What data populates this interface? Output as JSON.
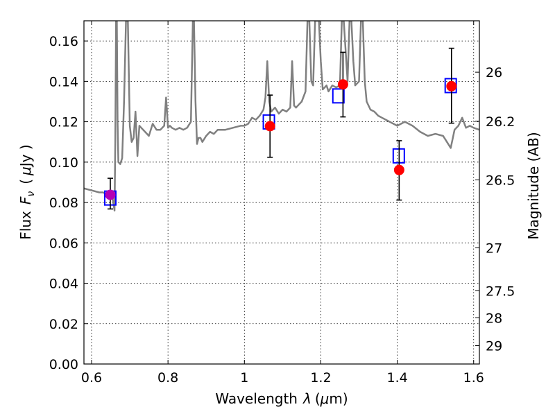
{
  "chart_data": {
    "type": "scatter",
    "xlabel_text": "Wavelength",
    "xlabel_symbol": "λ",
    "xlabel_unit_open": "(",
    "xlabel_unit_mu": "μ",
    "xlabel_unit_rest": "m)",
    "ylabel_text": "Flux",
    "ylabel_symbol": "F",
    "ylabel_sub": "ν",
    "ylabel_unit_open": "(",
    "ylabel_unit_mu": "μ",
    "ylabel_unit_rest": "Jy )",
    "y2label": "Magnitude (AB)",
    "xlim": [
      0.58,
      1.615
    ],
    "ylim": [
      0.0,
      0.17
    ],
    "x_ticks": [
      {
        "value": 0.6,
        "label": "0.6"
      },
      {
        "value": 0.8,
        "label": "0.8"
      },
      {
        "value": 1.0,
        "label": "1"
      },
      {
        "value": 1.2,
        "label": "1.2"
      },
      {
        "value": 1.4,
        "label": "1.4"
      },
      {
        "value": 1.6,
        "label": "1.6"
      }
    ],
    "y_ticks": [
      {
        "value": 0.0,
        "label": "0.00"
      },
      {
        "value": 0.02,
        "label": "0.02"
      },
      {
        "value": 0.04,
        "label": "0.04"
      },
      {
        "value": 0.06,
        "label": "0.06"
      },
      {
        "value": 0.08,
        "label": "0.08"
      },
      {
        "value": 0.1,
        "label": "0.10"
      },
      {
        "value": 0.12,
        "label": "0.12"
      },
      {
        "value": 0.14,
        "label": "0.14"
      },
      {
        "value": 0.16,
        "label": "0.16"
      }
    ],
    "y2_ticks": [
      {
        "value": 26,
        "label": "26"
      },
      {
        "value": 26.2,
        "label": "26.2"
      },
      {
        "value": 26.5,
        "label": "26.5"
      },
      {
        "value": 27,
        "label": "27"
      },
      {
        "value": 27.5,
        "label": "27.5"
      },
      {
        "value": 28,
        "label": "28"
      },
      {
        "value": 29,
        "label": "29"
      }
    ],
    "grid": true,
    "colors": {
      "model": "#808080",
      "observed": "#ff0000",
      "model_band": "#0000ff",
      "errorbar": "#000000",
      "first_point": "#b400b4"
    },
    "model_spectrum": {
      "x": [
        0.58,
        0.6,
        0.62,
        0.63,
        0.64,
        0.65,
        0.655,
        0.66,
        0.662,
        0.664,
        0.666,
        0.668,
        0.67,
        0.675,
        0.68,
        0.685,
        0.69,
        0.695,
        0.7,
        0.705,
        0.71,
        0.715,
        0.72,
        0.725,
        0.73,
        0.74,
        0.75,
        0.76,
        0.77,
        0.78,
        0.79,
        0.795,
        0.8,
        0.805,
        0.81,
        0.82,
        0.83,
        0.84,
        0.85,
        0.86,
        0.865,
        0.868,
        0.872,
        0.876,
        0.88,
        0.885,
        0.89,
        0.9,
        0.91,
        0.92,
        0.93,
        0.95,
        0.97,
        0.99,
        1.0,
        1.01,
        1.02,
        1.03,
        1.04,
        1.05,
        1.055,
        1.06,
        1.065,
        1.07,
        1.08,
        1.09,
        1.1,
        1.11,
        1.12,
        1.125,
        1.13,
        1.135,
        1.14,
        1.15,
        1.16,
        1.165,
        1.17,
        1.175,
        1.18,
        1.185,
        1.19,
        1.195,
        1.2,
        1.205,
        1.21,
        1.215,
        1.22,
        1.23,
        1.24,
        1.25,
        1.255,
        1.26,
        1.27,
        1.275,
        1.28,
        1.285,
        1.29,
        1.3,
        1.305,
        1.31,
        1.315,
        1.32,
        1.33,
        1.34,
        1.35,
        1.36,
        1.38,
        1.4,
        1.42,
        1.44,
        1.46,
        1.48,
        1.5,
        1.52,
        1.53,
        1.54,
        1.55,
        1.56,
        1.57,
        1.58,
        1.59,
        1.6,
        1.615
      ],
      "y": [
        0.087,
        0.086,
        0.085,
        0.085,
        0.084,
        0.084,
        0.082,
        0.076,
        0.11,
        0.17,
        0.17,
        0.12,
        0.1,
        0.099,
        0.102,
        0.13,
        0.17,
        0.17,
        0.118,
        0.11,
        0.112,
        0.125,
        0.103,
        0.118,
        0.117,
        0.115,
        0.113,
        0.119,
        0.116,
        0.116,
        0.118,
        0.132,
        0.117,
        0.118,
        0.117,
        0.116,
        0.117,
        0.116,
        0.117,
        0.12,
        0.17,
        0.17,
        0.13,
        0.109,
        0.112,
        0.112,
        0.11,
        0.113,
        0.115,
        0.114,
        0.116,
        0.116,
        0.117,
        0.118,
        0.118,
        0.119,
        0.122,
        0.121,
        0.123,
        0.126,
        0.132,
        0.15,
        0.13,
        0.125,
        0.127,
        0.124,
        0.126,
        0.125,
        0.127,
        0.15,
        0.128,
        0.127,
        0.128,
        0.13,
        0.135,
        0.17,
        0.17,
        0.14,
        0.138,
        0.17,
        0.17,
        0.17,
        0.15,
        0.136,
        0.137,
        0.138,
        0.135,
        0.138,
        0.137,
        0.138,
        0.17,
        0.17,
        0.14,
        0.17,
        0.17,
        0.15,
        0.138,
        0.14,
        0.17,
        0.17,
        0.14,
        0.13,
        0.126,
        0.125,
        0.123,
        0.122,
        0.12,
        0.118,
        0.12,
        0.118,
        0.115,
        0.113,
        0.114,
        0.113,
        0.11,
        0.107,
        0.116,
        0.118,
        0.122,
        0.117,
        0.118,
        0.117,
        0.116
      ]
    },
    "observed": [
      {
        "x": 0.649,
        "y": 0.0838,
        "err_lo": 0.0768,
        "err_hi": 0.092
      },
      {
        "x": 1.067,
        "y": 0.1178,
        "err_lo": 0.1024,
        "err_hi": 0.1332
      },
      {
        "x": 1.258,
        "y": 0.1385,
        "err_lo": 0.1224,
        "err_hi": 0.1544
      },
      {
        "x": 1.405,
        "y": 0.0961,
        "err_lo": 0.0812,
        "err_hi": 0.1106
      },
      {
        "x": 1.542,
        "y": 0.1376,
        "err_lo": 0.1193,
        "err_hi": 0.1564
      }
    ],
    "model_bandpass": [
      {
        "x": 0.649,
        "y": 0.0822
      },
      {
        "x": 1.064,
        "y": 0.1199
      },
      {
        "x": 1.246,
        "y": 0.1328
      },
      {
        "x": 1.404,
        "y": 0.1031
      },
      {
        "x": 1.54,
        "y": 0.1379
      }
    ]
  }
}
